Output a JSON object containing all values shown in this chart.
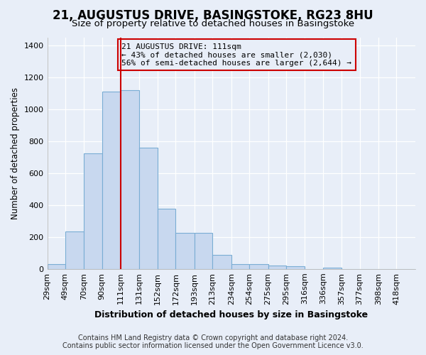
{
  "title": "21, AUGUSTUS DRIVE, BASINGSTOKE, RG23 8HU",
  "subtitle": "Size of property relative to detached houses in Basingstoke",
  "xlabel": "Distribution of detached houses by size in Basingstoke",
  "ylabel": "Number of detached properties",
  "footer_line1": "Contains HM Land Registry data © Crown copyright and database right 2024.",
  "footer_line2": "Contains public sector information licensed under the Open Government Licence v3.0.",
  "annotation_line1": "21 AUGUSTUS DRIVE: 111sqm",
  "annotation_line2": "← 43% of detached houses are smaller (2,030)",
  "annotation_line3": "56% of semi-detached houses are larger (2,644) →",
  "bar_edges": [
    29,
    49,
    70,
    90,
    111,
    131,
    152,
    172,
    193,
    213,
    234,
    254,
    275,
    295,
    316,
    336,
    357,
    377,
    398,
    418,
    439
  ],
  "bar_heights": [
    30,
    235,
    725,
    1110,
    1120,
    760,
    375,
    225,
    225,
    90,
    30,
    30,
    20,
    15,
    0,
    10,
    0,
    0,
    0,
    0
  ],
  "bar_color": "#c8d8ef",
  "bar_edge_color": "#7aadd4",
  "vline_x": 111,
  "vline_color": "#cc0000",
  "ylim": [
    0,
    1450
  ],
  "yticks": [
    0,
    200,
    400,
    600,
    800,
    1000,
    1200,
    1400
  ],
  "bg_color": "#e8eef8",
  "grid_color": "#ffffff",
  "annotation_box_color": "#cc0000",
  "title_fontsize": 12,
  "subtitle_fontsize": 9.5,
  "xlabel_fontsize": 9,
  "ylabel_fontsize": 8.5,
  "tick_fontsize": 8,
  "footer_fontsize": 7
}
